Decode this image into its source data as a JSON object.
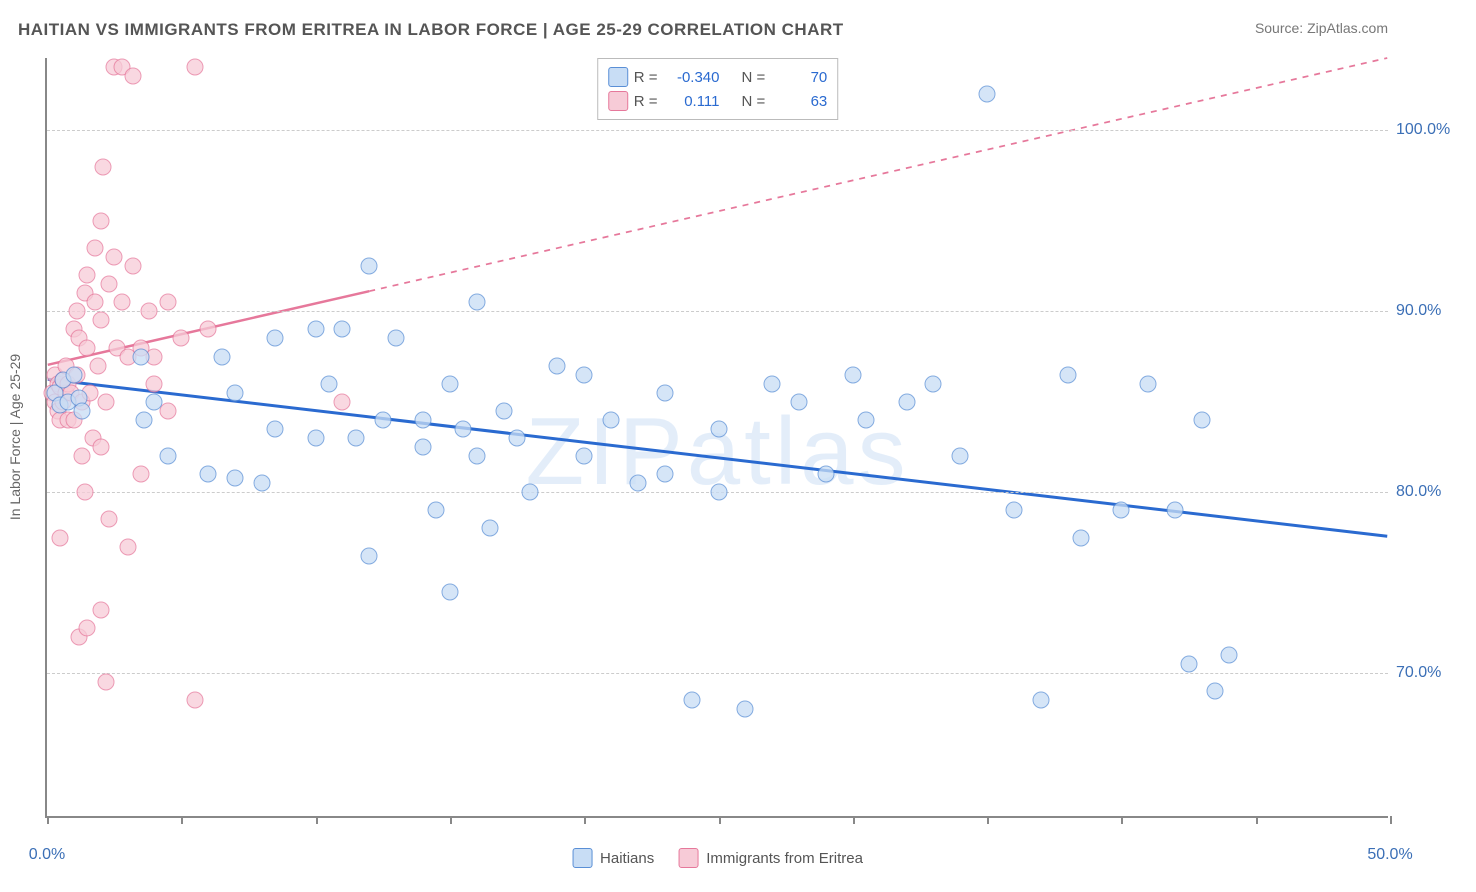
{
  "title": "HAITIAN VS IMMIGRANTS FROM ERITREA IN LABOR FORCE | AGE 25-29 CORRELATION CHART",
  "source": "Source: ZipAtlas.com",
  "watermark": "ZIPatlas",
  "chart": {
    "type": "scatter",
    "ylabel": "In Labor Force | Age 25-29",
    "background_color": "#ffffff",
    "grid_color": "#cccccc",
    "axis_color": "#888888",
    "tick_label_color": "#3b6fb6",
    "xlim": [
      0,
      50
    ],
    "ylim": [
      62,
      104
    ],
    "xticks": [
      0,
      5,
      10,
      15,
      20,
      25,
      30,
      35,
      40,
      45,
      50
    ],
    "xticks_labeled": [
      {
        "x": 0,
        "label": "0.0%"
      },
      {
        "x": 50,
        "label": "50.0%"
      }
    ],
    "yticks": [
      {
        "y": 70,
        "label": "70.0%"
      },
      {
        "y": 80,
        "label": "80.0%"
      },
      {
        "y": 90,
        "label": "90.0%"
      },
      {
        "y": 100,
        "label": "100.0%"
      }
    ],
    "marker_radius": 8.5,
    "series": [
      {
        "name": "Haitians",
        "fill": "#c8ddf5",
        "stroke": "#5a8fd6",
        "trend_color": "#2a6ad0",
        "trend_width": 3,
        "trend": {
          "x1": 0,
          "y1": 86.2,
          "x2": 50,
          "y2": 77.5,
          "solid_until_x": 50
        },
        "stats": {
          "R_label": "R =",
          "R": "-0.340",
          "N_label": "N =",
          "N": "70"
        },
        "points": [
          [
            0.3,
            85.5
          ],
          [
            0.5,
            84.8
          ],
          [
            0.6,
            86.2
          ],
          [
            0.8,
            85.0
          ],
          [
            1.0,
            86.5
          ],
          [
            1.2,
            85.2
          ],
          [
            1.3,
            84.5
          ],
          [
            3.5,
            87.5
          ],
          [
            3.6,
            84.0
          ],
          [
            4.0,
            85.0
          ],
          [
            4.5,
            82.0
          ],
          [
            6.0,
            81.0
          ],
          [
            6.5,
            87.5
          ],
          [
            7.0,
            85.5
          ],
          [
            7.0,
            80.8
          ],
          [
            8.0,
            80.5
          ],
          [
            8.5,
            88.5
          ],
          [
            8.5,
            83.5
          ],
          [
            10.0,
            89.0
          ],
          [
            10.0,
            83.0
          ],
          [
            10.5,
            86.0
          ],
          [
            11.0,
            89.0
          ],
          [
            11.5,
            83.0
          ],
          [
            12.0,
            92.5
          ],
          [
            12.5,
            84.0
          ],
          [
            13.0,
            88.5
          ],
          [
            14.0,
            84.0
          ],
          [
            14.0,
            82.5
          ],
          [
            14.5,
            79.0
          ],
          [
            15.0,
            86.0
          ],
          [
            15.0,
            74.5
          ],
          [
            15.5,
            83.5
          ],
          [
            16.0,
            90.5
          ],
          [
            16.0,
            82.0
          ],
          [
            17.0,
            84.5
          ],
          [
            17.5,
            83.0
          ],
          [
            18.0,
            80.0
          ],
          [
            19.0,
            87.0
          ],
          [
            20.0,
            86.5
          ],
          [
            20.0,
            82.0
          ],
          [
            21.0,
            84.0
          ],
          [
            22.0,
            80.5
          ],
          [
            23.0,
            81.0
          ],
          [
            23.0,
            85.5
          ],
          [
            24.0,
            68.5
          ],
          [
            25.0,
            83.5
          ],
          [
            25.0,
            80.0
          ],
          [
            26.0,
            68.0
          ],
          [
            27.0,
            86.0
          ],
          [
            28.0,
            85.0
          ],
          [
            29.0,
            81.0
          ],
          [
            30.0,
            86.5
          ],
          [
            30.5,
            84.0
          ],
          [
            32.0,
            85.0
          ],
          [
            33.0,
            86.0
          ],
          [
            34.0,
            82.0
          ],
          [
            35.0,
            102.0
          ],
          [
            36.0,
            79.0
          ],
          [
            37.0,
            68.5
          ],
          [
            38.0,
            86.5
          ],
          [
            38.5,
            77.5
          ],
          [
            40.0,
            79.0
          ],
          [
            41.0,
            86.0
          ],
          [
            42.0,
            79.0
          ],
          [
            42.5,
            70.5
          ],
          [
            43.0,
            84.0
          ],
          [
            43.5,
            69.0
          ],
          [
            44.0,
            71.0
          ],
          [
            12.0,
            76.5
          ],
          [
            16.5,
            78.0
          ]
        ]
      },
      {
        "name": "Immigrants from Eritrea",
        "fill": "#f7cbd7",
        "stroke": "#e6789b",
        "trend_color": "#e6789b",
        "trend_width": 2.5,
        "trend": {
          "x1": 0,
          "y1": 87.0,
          "x2": 50,
          "y2": 104.0,
          "solid_until_x": 12
        },
        "stats": {
          "R_label": "R =",
          "R": "0.111",
          "N_label": "N =",
          "N": "63"
        },
        "points": [
          [
            0.2,
            85.5
          ],
          [
            0.3,
            86.5
          ],
          [
            0.3,
            85.0
          ],
          [
            0.4,
            84.5
          ],
          [
            0.4,
            86.0
          ],
          [
            0.5,
            85.8
          ],
          [
            0.5,
            84.0
          ],
          [
            0.6,
            86.2
          ],
          [
            0.6,
            85.0
          ],
          [
            0.7,
            87.0
          ],
          [
            0.7,
            85.5
          ],
          [
            0.8,
            84.0
          ],
          [
            0.8,
            86.0
          ],
          [
            0.9,
            85.5
          ],
          [
            1.0,
            89.0
          ],
          [
            1.0,
            84.0
          ],
          [
            1.1,
            86.5
          ],
          [
            1.1,
            90.0
          ],
          [
            1.2,
            88.5
          ],
          [
            1.3,
            82.0
          ],
          [
            1.3,
            85.0
          ],
          [
            1.4,
            91.0
          ],
          [
            1.4,
            80.0
          ],
          [
            1.5,
            88.0
          ],
          [
            1.5,
            92.0
          ],
          [
            1.6,
            85.5
          ],
          [
            1.7,
            83.0
          ],
          [
            1.8,
            90.5
          ],
          [
            1.8,
            93.5
          ],
          [
            1.9,
            87.0
          ],
          [
            2.0,
            95.0
          ],
          [
            2.0,
            89.5
          ],
          [
            2.0,
            82.5
          ],
          [
            2.1,
            98.0
          ],
          [
            2.2,
            85.0
          ],
          [
            2.3,
            91.5
          ],
          [
            2.3,
            78.5
          ],
          [
            2.5,
            103.5
          ],
          [
            2.5,
            93.0
          ],
          [
            2.6,
            88.0
          ],
          [
            2.8,
            90.5
          ],
          [
            2.8,
            103.5
          ],
          [
            3.0,
            87.5
          ],
          [
            3.0,
            77.0
          ],
          [
            3.2,
            92.5
          ],
          [
            3.2,
            103.0
          ],
          [
            3.5,
            88.0
          ],
          [
            3.5,
            81.0
          ],
          [
            3.8,
            90.0
          ],
          [
            4.0,
            86.0
          ],
          [
            4.0,
            87.5
          ],
          [
            4.5,
            90.5
          ],
          [
            4.5,
            84.5
          ],
          [
            5.0,
            88.5
          ],
          [
            5.5,
            103.5
          ],
          [
            5.5,
            68.5
          ],
          [
            6.0,
            89.0
          ],
          [
            1.2,
            72.0
          ],
          [
            1.5,
            72.5
          ],
          [
            2.0,
            73.5
          ],
          [
            2.2,
            69.5
          ],
          [
            0.5,
            77.5
          ],
          [
            11.0,
            85.0
          ]
        ]
      }
    ]
  },
  "legend": {
    "items": [
      {
        "swatch_class": "sw0",
        "label": "Haitians"
      },
      {
        "swatch_class": "sw1",
        "label": "Immigrants from Eritrea"
      }
    ]
  }
}
